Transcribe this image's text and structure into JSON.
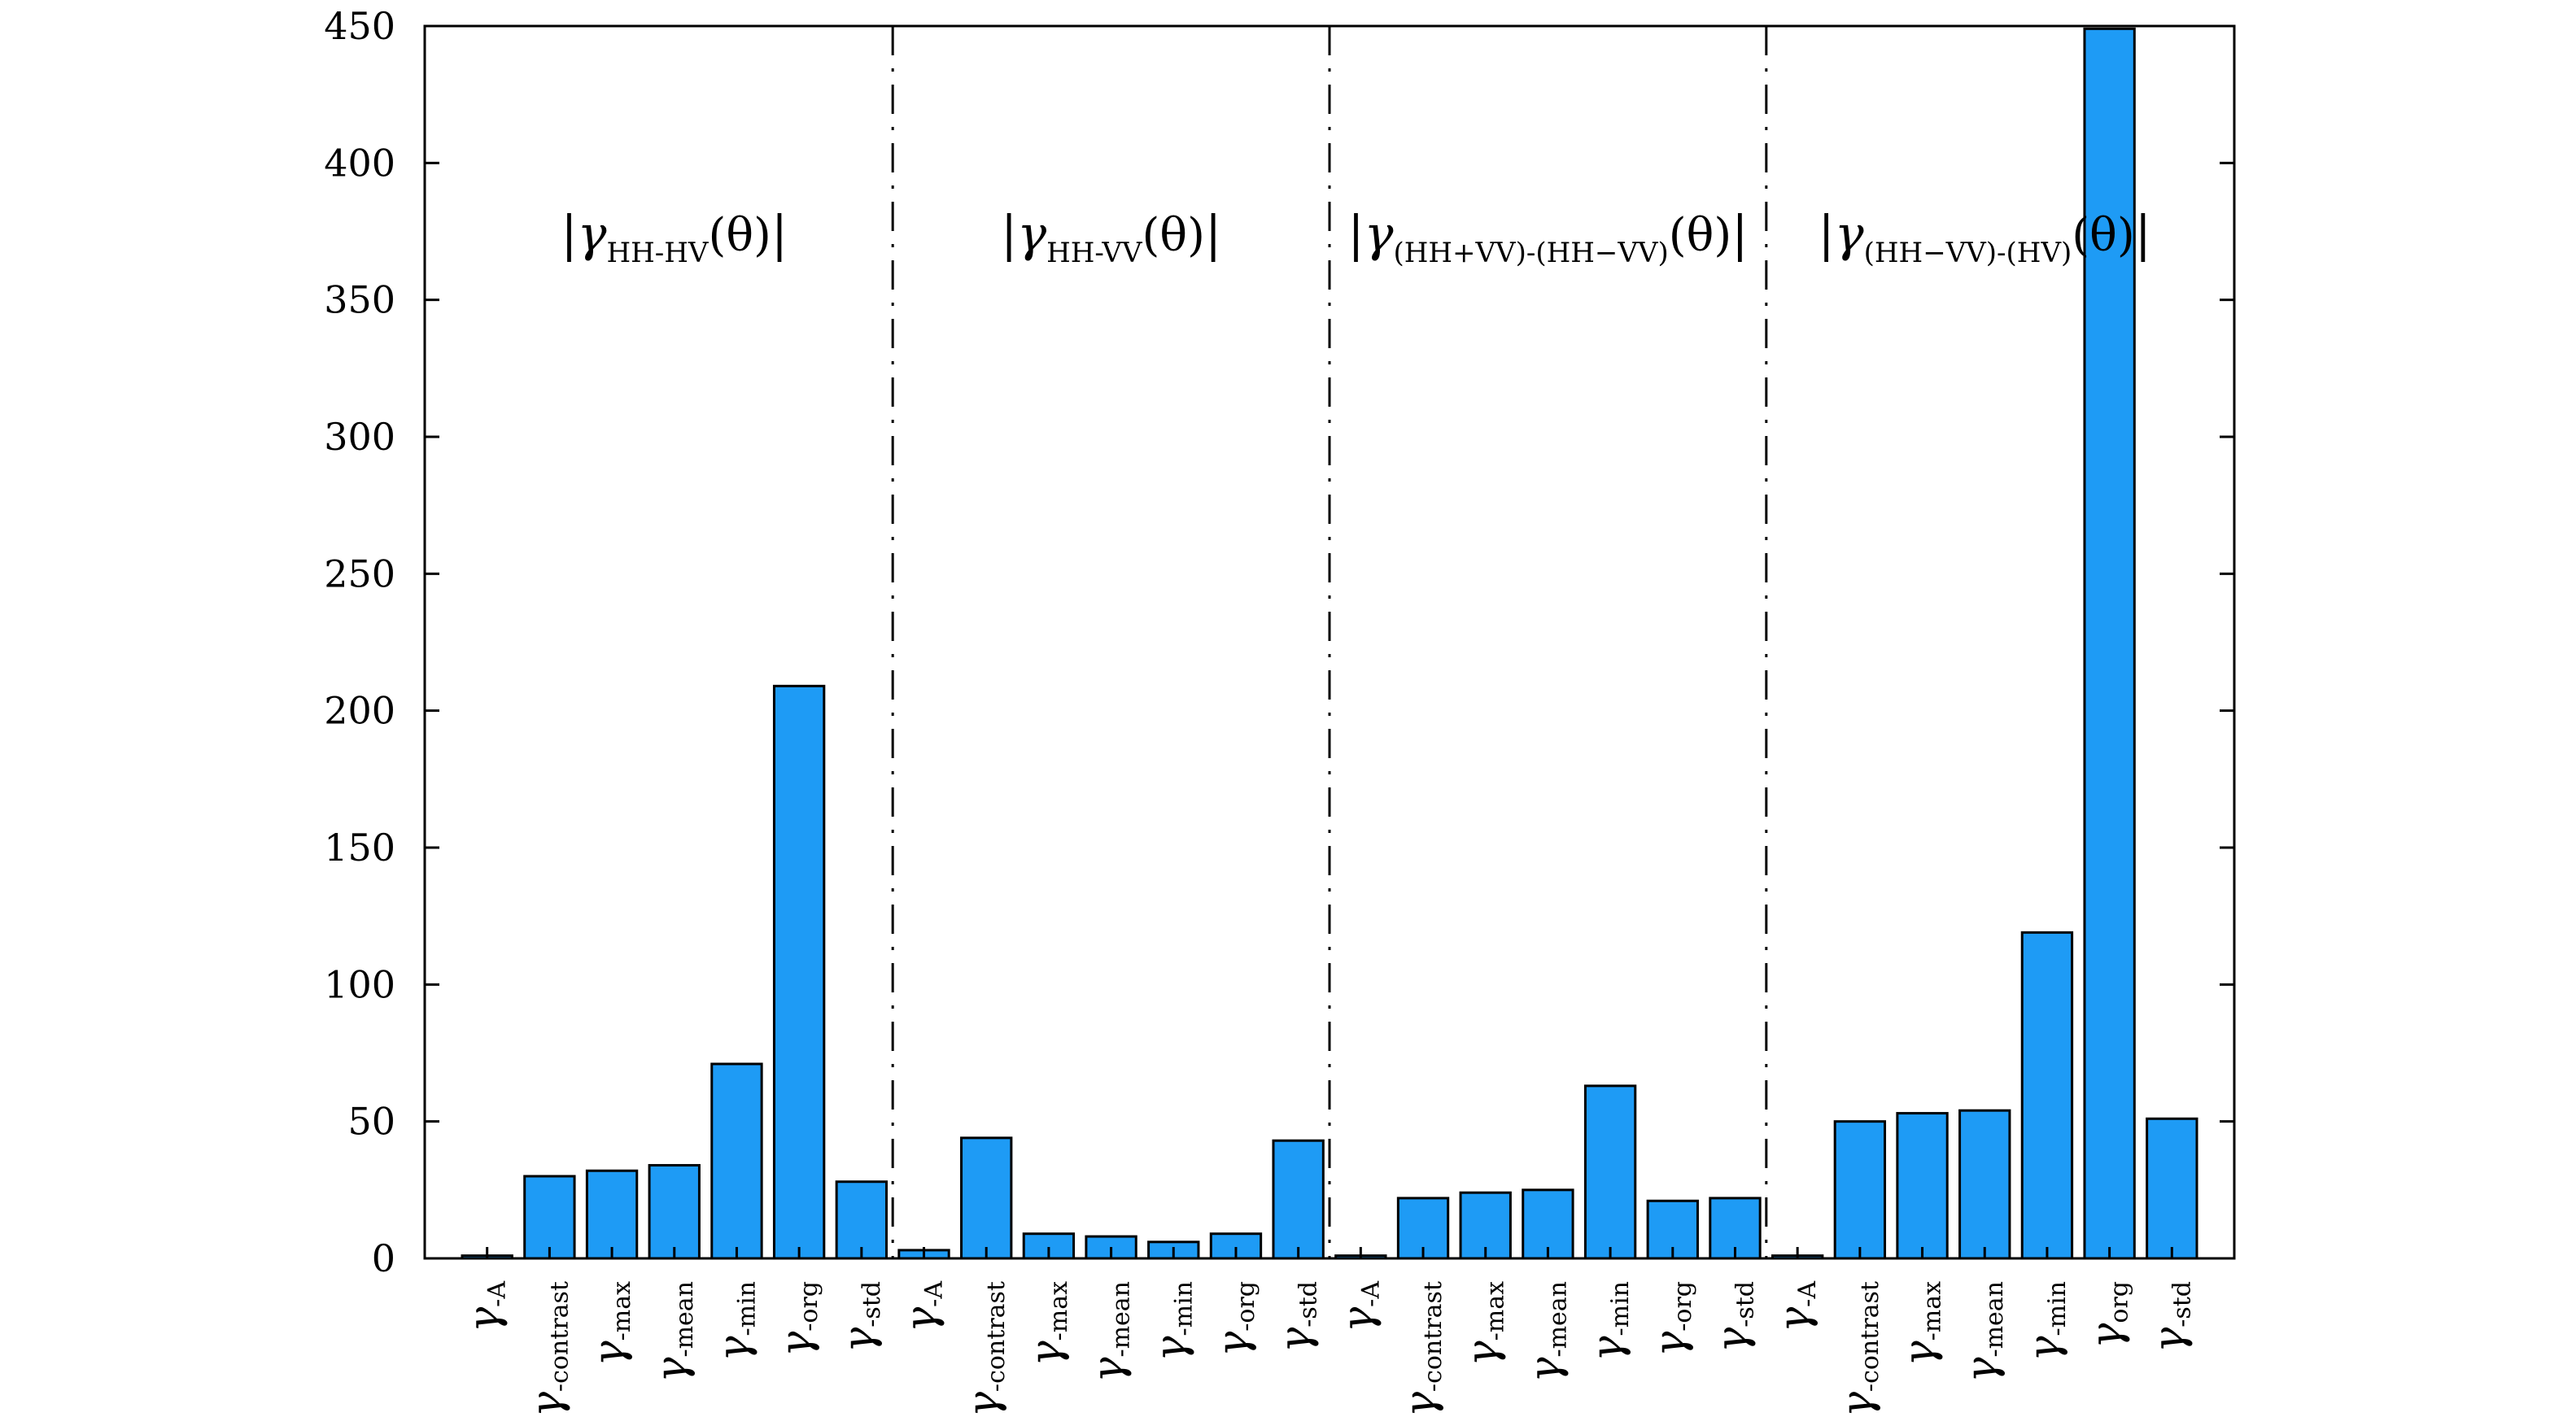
{
  "chart_data": {
    "type": "bar",
    "ylim": [
      0,
      450
    ],
    "yticks": [
      0,
      50,
      100,
      150,
      200,
      250,
      300,
      350,
      400,
      450
    ],
    "bar_color": "#1e9bf5",
    "grid": false,
    "groups": [
      {
        "label_main": "γ",
        "label_sub": "HH-HV",
        "label_suffix": "(θ)",
        "categories": [
          {
            "greek": "γ",
            "sub": "-A"
          },
          {
            "greek": "γ",
            "sub": "-contrast"
          },
          {
            "greek": "γ",
            "sub": "-max"
          },
          {
            "greek": "γ",
            "sub": "-mean"
          },
          {
            "greek": "γ",
            "sub": "-min"
          },
          {
            "greek": "γ",
            "sub": "-org"
          },
          {
            "greek": "γ",
            "sub": "-std"
          }
        ],
        "values": [
          1,
          30,
          32,
          34,
          71,
          209,
          28
        ]
      },
      {
        "label_main": "γ",
        "label_sub": "HH-VV",
        "label_suffix": "(θ)",
        "categories": [
          {
            "greek": "γ",
            "sub": "-A"
          },
          {
            "greek": "γ",
            "sub": "-contrast"
          },
          {
            "greek": "γ",
            "sub": "-max"
          },
          {
            "greek": "γ",
            "sub": "-mean"
          },
          {
            "greek": "γ",
            "sub": "-min"
          },
          {
            "greek": "γ",
            "sub": "-org"
          },
          {
            "greek": "γ",
            "sub": "-std"
          }
        ],
        "values": [
          3,
          44,
          9,
          8,
          6,
          9,
          43
        ]
      },
      {
        "label_main": "γ",
        "label_sub": "(HH+VV)-(HH−VV)",
        "label_suffix": "(θ)",
        "categories": [
          {
            "greek": "γ",
            "sub": "-A"
          },
          {
            "greek": "γ",
            "sub": "-contrast"
          },
          {
            "greek": "γ",
            "sub": "-max"
          },
          {
            "greek": "γ",
            "sub": "-mean"
          },
          {
            "greek": "γ",
            "sub": "-min"
          },
          {
            "greek": "γ",
            "sub": "-org"
          },
          {
            "greek": "γ",
            "sub": "-std"
          }
        ],
        "values": [
          1,
          22,
          24,
          25,
          63,
          21,
          22
        ]
      },
      {
        "label_main": "γ",
        "label_sub": "(HH−VV)-(HV)",
        "label_suffix": "(θ)",
        "categories": [
          {
            "greek": "γ",
            "sub": "-A"
          },
          {
            "greek": "γ",
            "sub": "-contrast"
          },
          {
            "greek": "γ",
            "sub": "-max"
          },
          {
            "greek": "γ",
            "sub": "-mean"
          },
          {
            "greek": "γ",
            "sub": "-min"
          },
          {
            "greek": "γ",
            "sub": "org"
          },
          {
            "greek": "γ",
            "sub": "-std"
          }
        ],
        "values": [
          1,
          50,
          53,
          54,
          119,
          449,
          51
        ]
      }
    ]
  }
}
